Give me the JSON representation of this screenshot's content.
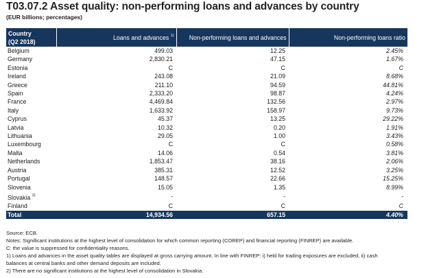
{
  "title": "T03.07.2 Asset quality: non-performing loans and advances by country",
  "subtitle": "(EUR billions; percentages)",
  "table": {
    "header": {
      "country_line1": "Country",
      "country_line2": "(Q2 2018)",
      "loans": "Loans and advances",
      "loans_note": "1)",
      "npl": "Non-performing loans and advances",
      "ratio": "Non-performing loans ratio"
    },
    "rows": [
      {
        "country": "Belgium",
        "note": "",
        "loans": "499.03",
        "npl": "12.25",
        "ratio": "2.45%"
      },
      {
        "country": "Germany",
        "note": "",
        "loans": "2,830.21",
        "npl": "47.15",
        "ratio": "1.67%"
      },
      {
        "country": "Estonia",
        "note": "",
        "loans": "C",
        "npl": "C",
        "ratio": "C"
      },
      {
        "country": "Ireland",
        "note": "",
        "loans": "243.08",
        "npl": "21.09",
        "ratio": "8.68%"
      },
      {
        "country": "Greece",
        "note": "",
        "loans": "211.10",
        "npl": "94.59",
        "ratio": "44.81%"
      },
      {
        "country": "Spain",
        "note": "",
        "loans": "2,333.20",
        "npl": "98.87",
        "ratio": "4.24%"
      },
      {
        "country": "France",
        "note": "",
        "loans": "4,469.84",
        "npl": "132.56",
        "ratio": "2.97%"
      },
      {
        "country": "Italy",
        "note": "",
        "loans": "1,633.92",
        "npl": "158.97",
        "ratio": "9.73%"
      },
      {
        "country": "Cyprus",
        "note": "",
        "loans": "45.37",
        "npl": "13.25",
        "ratio": "29.22%"
      },
      {
        "country": "Latvia",
        "note": "",
        "loans": "10.32",
        "npl": "0.20",
        "ratio": "1.91%"
      },
      {
        "country": "Lithuania",
        "note": "",
        "loans": "29.05",
        "npl": "1.00",
        "ratio": "3.43%"
      },
      {
        "country": "Luxembourg",
        "note": "",
        "loans": "C",
        "npl": "C",
        "ratio": "0.58%"
      },
      {
        "country": "Malta",
        "note": "",
        "loans": "14.06",
        "npl": "0.54",
        "ratio": "3.81%"
      },
      {
        "country": "Netherlands",
        "note": "",
        "loans": "1,853.47",
        "npl": "38.16",
        "ratio": "2.06%"
      },
      {
        "country": "Austria",
        "note": "",
        "loans": "385.31",
        "npl": "12.52",
        "ratio": "3.25%"
      },
      {
        "country": "Portugal",
        "note": "",
        "loans": "148.57",
        "npl": "22.66",
        "ratio": "15.25%"
      },
      {
        "country": "Slovenia",
        "note": "",
        "loans": "15.05",
        "npl": "1.35",
        "ratio": "8.99%"
      },
      {
        "country": "Slovakia",
        "note": "2)",
        "loans": "-",
        "npl": "-",
        "ratio": "-"
      },
      {
        "country": "Finland",
        "note": "",
        "loans": "C",
        "npl": "C",
        "ratio": "C"
      }
    ],
    "total": {
      "label": "Total",
      "loans": "14,934.56",
      "npl": "657.15",
      "ratio": "4.40%"
    }
  },
  "notes": {
    "source": "Source: ECB.",
    "notes": "Notes: Significant institutions at the highest level of consolidation for which common reporting (COREP) and financial reporting (FINREP) are available.",
    "c_note": "C: the value is suppressed for confidentiality reasons.",
    "note1_line1": "1) Loans and advances in the asset quality tables are displayed at gross carrying amount. In line with FINREP: i) held for trading exposures are excluded, ii) cash",
    "note1_line2": "balances at central banks and other demand deposits are included.",
    "note2": "2) There are no significant institutions at the highest level of consolidation in Slovakia."
  },
  "colors": {
    "header_bg": "#17365d",
    "header_text": "#ffffff"
  }
}
